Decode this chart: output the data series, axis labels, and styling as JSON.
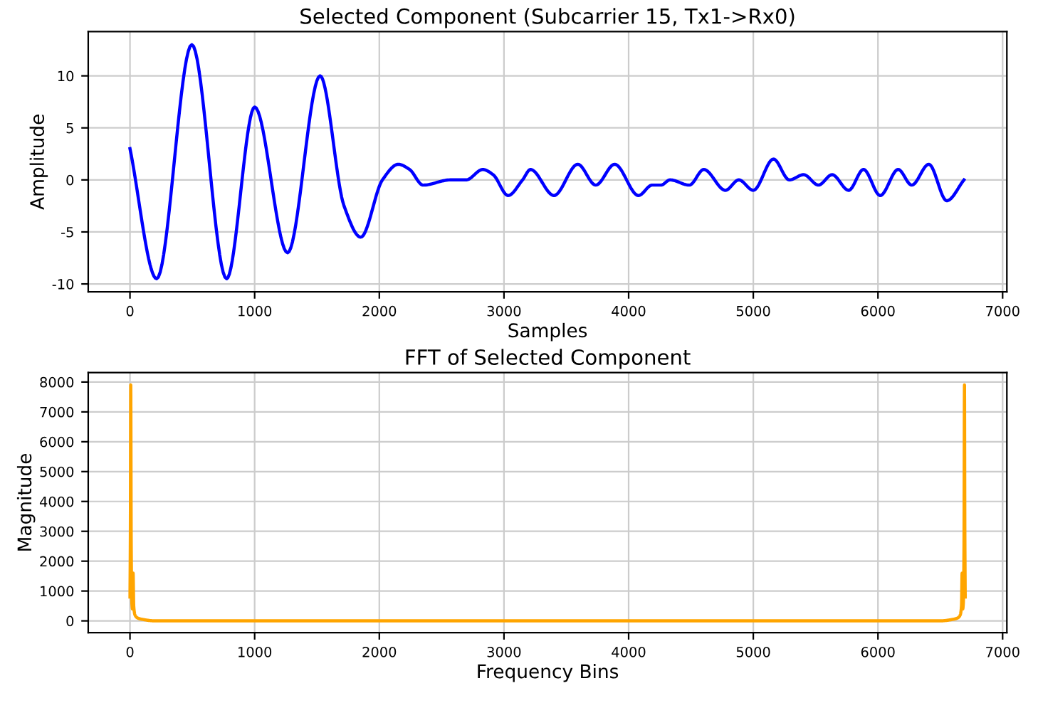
{
  "chart_data": [
    {
      "type": "line",
      "title": "Selected Component (Subcarrier 15, Tx1->Rx0)",
      "xlabel": "Samples",
      "ylabel": "Amplitude",
      "grid": true,
      "xlim": [
        -335,
        7034
      ],
      "ylim": [
        -10.75,
        14.25
      ],
      "xticks": [
        0,
        1000,
        2000,
        3000,
        4000,
        5000,
        6000,
        7000
      ],
      "yticks": [
        -10,
        -5,
        0,
        5,
        10
      ],
      "series": [
        {
          "color": "#0000ff",
          "x": [
            0,
            214,
            496,
            775,
            1000,
            1264,
            1525,
            1717,
            1851,
            2025,
            2152,
            2243,
            2351,
            2569,
            2696,
            2830,
            2913,
            3033,
            3149,
            3213,
            3401,
            3592,
            3736,
            3888,
            4079,
            4188,
            4260,
            4332,
            4487,
            4603,
            4776,
            4884,
            5000,
            5162,
            5289,
            5404,
            5523,
            5632,
            5765,
            5884,
            6018,
            6162,
            6271,
            6408,
            6552,
            6690
          ],
          "values": [
            3,
            -9.5,
            13,
            -9.5,
            7,
            -7,
            10,
            -2.5,
            -5.5,
            0,
            1.5,
            1,
            -0.5,
            0,
            0,
            1,
            0.5,
            -1.5,
            0,
            1,
            -1.5,
            1.5,
            -0.5,
            1.5,
            -1.5,
            -0.5,
            -0.5,
            0,
            -0.5,
            1,
            -1,
            0,
            -1,
            2,
            0,
            0.5,
            -0.5,
            0.5,
            -1,
            1,
            -1.5,
            1,
            -0.5,
            1.5,
            -2,
            0
          ]
        }
      ]
    },
    {
      "type": "line",
      "title": "FFT of Selected Component",
      "xlabel": "Frequency Bins",
      "ylabel": "Magnitude",
      "grid": true,
      "xlim": [
        -335,
        7034
      ],
      "ylim": [
        -396,
        8316
      ],
      "xticks": [
        0,
        1000,
        2000,
        3000,
        4000,
        5000,
        6000,
        7000
      ],
      "yticks": [
        0,
        1000,
        2000,
        3000,
        4000,
        5000,
        6000,
        7000,
        8000
      ],
      "series": [
        {
          "color": "#ffa500",
          "x": [
            0,
            3,
            6,
            10,
            15,
            20,
            25,
            30,
            40,
            60,
            100,
            200,
            1000,
            3350,
            5700,
            6500,
            6600,
            6640,
            6660,
            6670,
            6675,
            6680,
            6685,
            6690,
            6694,
            6697,
            6700
          ],
          "values": [
            800,
            3000,
            7900,
            2500,
            600,
            400,
            1600,
            500,
            200,
            100,
            50,
            0,
            0,
            0,
            0,
            0,
            50,
            100,
            200,
            500,
            1600,
            400,
            600,
            2500,
            7900,
            3000,
            800
          ]
        }
      ]
    }
  ]
}
